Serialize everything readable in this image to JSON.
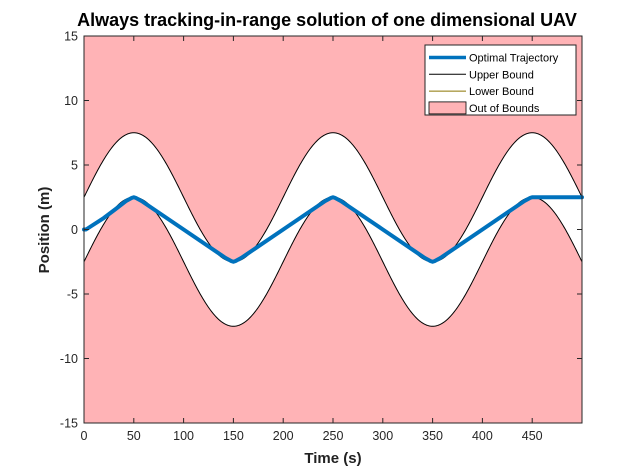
{
  "chart_data": {
    "type": "area",
    "title": "Always tracking-in-range solution of one dimensional UAV",
    "xlabel": "Time (s)",
    "ylabel": "Position (m)",
    "xlim": [
      0,
      500
    ],
    "ylim": [
      -15,
      15
    ],
    "xticks": [
      0,
      50,
      100,
      150,
      200,
      250,
      300,
      350,
      400,
      450
    ],
    "yticks": [
      -15,
      -10,
      -5,
      0,
      5,
      10,
      15
    ],
    "grid": false,
    "legend_position": "top-right",
    "legend": [
      "Optimal Trajectory",
      "Upper Bound",
      "Lower Bound",
      "Out of Bounds"
    ],
    "series": [
      {
        "name": "Optimal Trajectory",
        "color": "#0072BD",
        "x": [
          0,
          2,
          8,
          20,
          32,
          42,
          48,
          50,
          52,
          58,
          100,
          142,
          148,
          150,
          152,
          158,
          200,
          242,
          248,
          250,
          252,
          258,
          300,
          342,
          348,
          350,
          352,
          358,
          400,
          442,
          448,
          450,
          452,
          460,
          470,
          480,
          500
        ],
        "y": [
          0,
          0,
          0.3,
          0.9,
          1.6,
          2.2,
          2.45,
          2.5,
          2.45,
          2.2,
          0,
          -2.2,
          -2.45,
          -2.5,
          -2.45,
          -2.2,
          0,
          2.2,
          2.45,
          2.5,
          2.45,
          2.2,
          0,
          -2.2,
          -2.45,
          -2.5,
          -2.45,
          -2.2,
          0,
          2.2,
          2.45,
          2.5,
          2.5,
          2.5,
          2.5,
          2.5,
          2.5
        ]
      },
      {
        "name": "Upper Bound",
        "color": "#000000",
        "formula": "5*sin(2*pi*t/200) + 2.5",
        "x_range": [
          0,
          500
        ]
      },
      {
        "name": "Lower Bound",
        "color": "#8B7500",
        "formula": "5*sin(2*pi*t/200) - 2.5",
        "x_range": [
          0,
          500
        ]
      },
      {
        "name": "Out of Bounds",
        "color": "#FFB3B6",
        "description_of_fill": "regions above upper bound and below lower bound"
      }
    ]
  }
}
